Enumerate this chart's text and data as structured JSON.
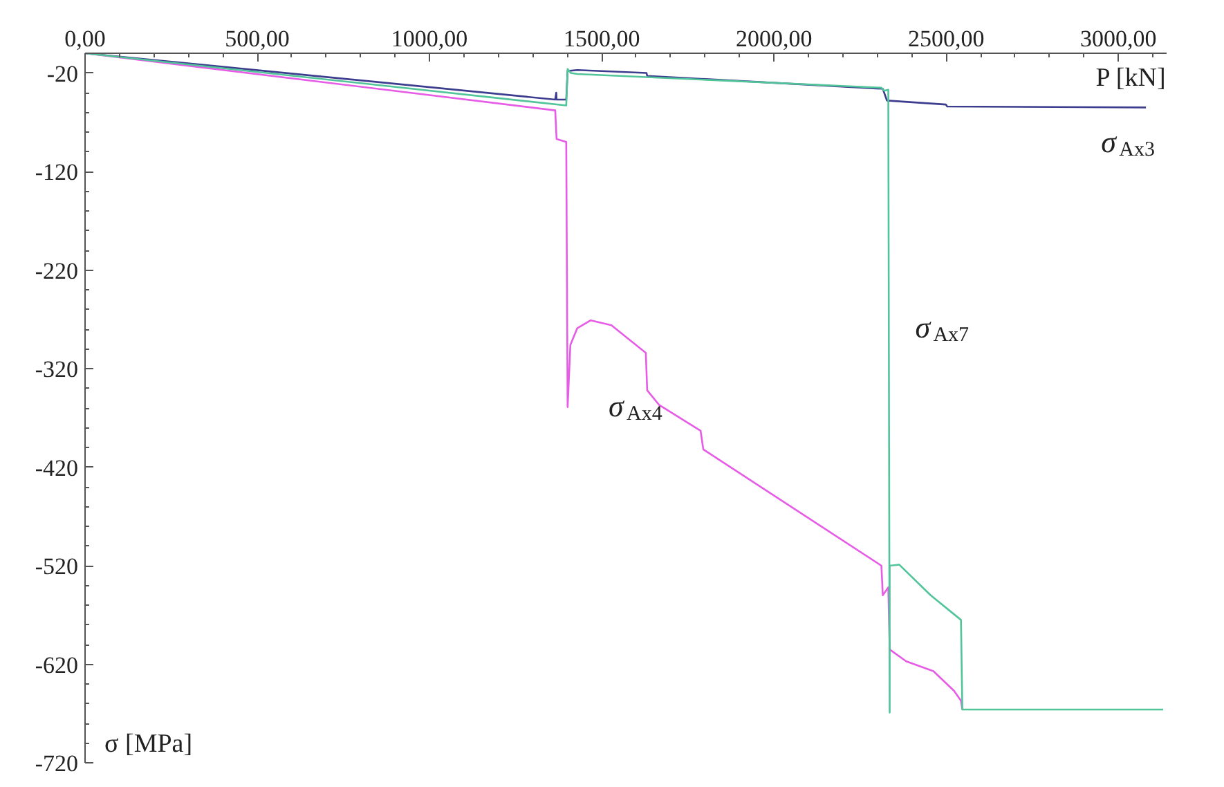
{
  "chart_data": {
    "type": "line",
    "xlabel": "P [kN]",
    "ylabel": "σ [MPa]",
    "xlim": [
      0,
      3140
    ],
    "ylim": [
      -720,
      0
    ],
    "xticks": [
      {
        "value": 0,
        "label": "0,00"
      },
      {
        "value": 500,
        "label": "500,00"
      },
      {
        "value": 1000,
        "label": "1000,00"
      },
      {
        "value": 1500,
        "label": "1500,00"
      },
      {
        "value": 2000,
        "label": "2000,00"
      },
      {
        "value": 2500,
        "label": "2500,00"
      },
      {
        "value": 3000,
        "label": "3000,00"
      }
    ],
    "yticks": [
      -20,
      -120,
      -220,
      -320,
      -420,
      -520,
      -620,
      -720
    ],
    "grid": false,
    "legend": false,
    "marker": "none",
    "line_style": "solid",
    "series": [
      {
        "name": "σ$_{Ax3}$",
        "color": "#3d3d8f",
        "x": [
          0,
          1365,
          1368,
          1369,
          1397,
          1401,
          1429,
          1630,
          1632,
          2312,
          2316,
          2328,
          2499,
          2503,
          3080
        ],
        "values": [
          0,
          -47,
          -40,
          -47,
          -47,
          -18,
          -17,
          -20,
          -23,
          -36,
          -36,
          -48,
          -52,
          -54,
          -55
        ]
      },
      {
        "name": "σ$_{Ax4}$",
        "color": "#e65ce6",
        "x": [
          0,
          1365,
          1369,
          1397,
          1401,
          1409,
          1429,
          1468,
          1528,
          1628,
          1632,
          1667,
          1787,
          1795,
          2312,
          2316,
          2332,
          2336,
          2384,
          2463,
          2523,
          2543,
          2547
        ],
        "values": [
          0,
          -58,
          -87,
          -90,
          -359,
          -296,
          -279,
          -271,
          -276,
          -304,
          -342,
          -357,
          -383,
          -402,
          -520,
          -550,
          -542,
          -605,
          -617,
          -627,
          -647,
          -657,
          -666
        ]
      },
      {
        "name": "σ$_{Ax7}$",
        "color": "#52c49a",
        "x": [
          0,
          1397,
          1401,
          1410,
          1429,
          2312,
          2320,
          2332,
          2336,
          2336,
          2364,
          2455,
          2543,
          2547,
          3130
        ],
        "values": [
          0,
          -53,
          -16,
          -20,
          -21,
          -35,
          -38,
          -37,
          -669,
          -520,
          -519,
          -550,
          -575,
          -666,
          -666
        ]
      }
    ]
  }
}
